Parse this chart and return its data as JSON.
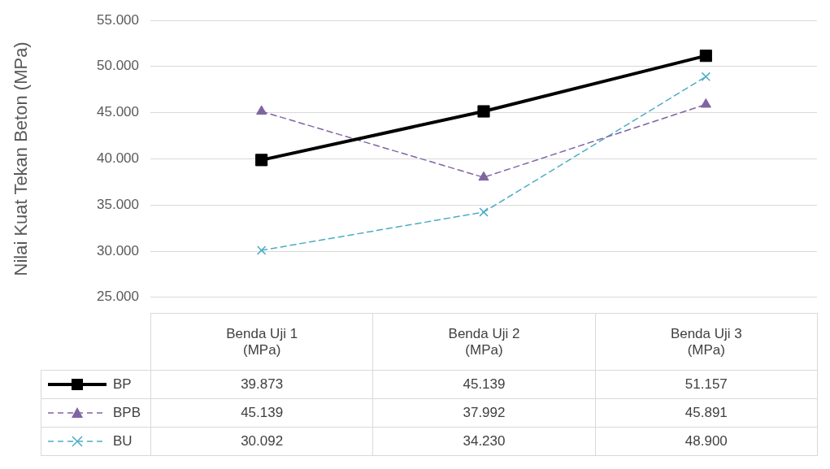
{
  "chart_data": {
    "type": "line",
    "ylabel": "Nilai Kuat Tekan Beton (MPa)",
    "categories": [
      "Benda Uji 1 (MPa)",
      "Benda Uji 2 (MPa)",
      "Benda Uji 3 (MPa)"
    ],
    "series": [
      {
        "name": "BP",
        "color": "#000000",
        "values": [
          39.873,
          45.139,
          51.157
        ],
        "value_labels": [
          "39.873",
          "45.139",
          "51.157"
        ],
        "marker": "square",
        "line_style": "solid"
      },
      {
        "name": "BPB",
        "color": "#8064a2",
        "values": [
          45.139,
          37.992,
          45.891
        ],
        "value_labels": [
          "45.139",
          "37.992",
          "45.891"
        ],
        "marker": "triangle",
        "line_style": "dashed"
      },
      {
        "name": "BU",
        "color": "#4bacc6",
        "values": [
          30.092,
          34.23,
          48.9
        ],
        "value_labels": [
          "30.092",
          "34.230",
          "48.900"
        ],
        "marker": "cross",
        "line_style": "dashed"
      }
    ],
    "ylim": [
      25,
      55
    ],
    "yticks": [
      {
        "value": 25,
        "label": "25.000"
      },
      {
        "value": 30,
        "label": "30.000"
      },
      {
        "value": 35,
        "label": "35.000"
      },
      {
        "value": 40,
        "label": "40.000"
      },
      {
        "value": 45,
        "label": "45.000"
      },
      {
        "value": 50,
        "label": "50.000"
      },
      {
        "value": 55,
        "label": "55.000"
      }
    ],
    "grid": "y",
    "legend": "bottom"
  }
}
